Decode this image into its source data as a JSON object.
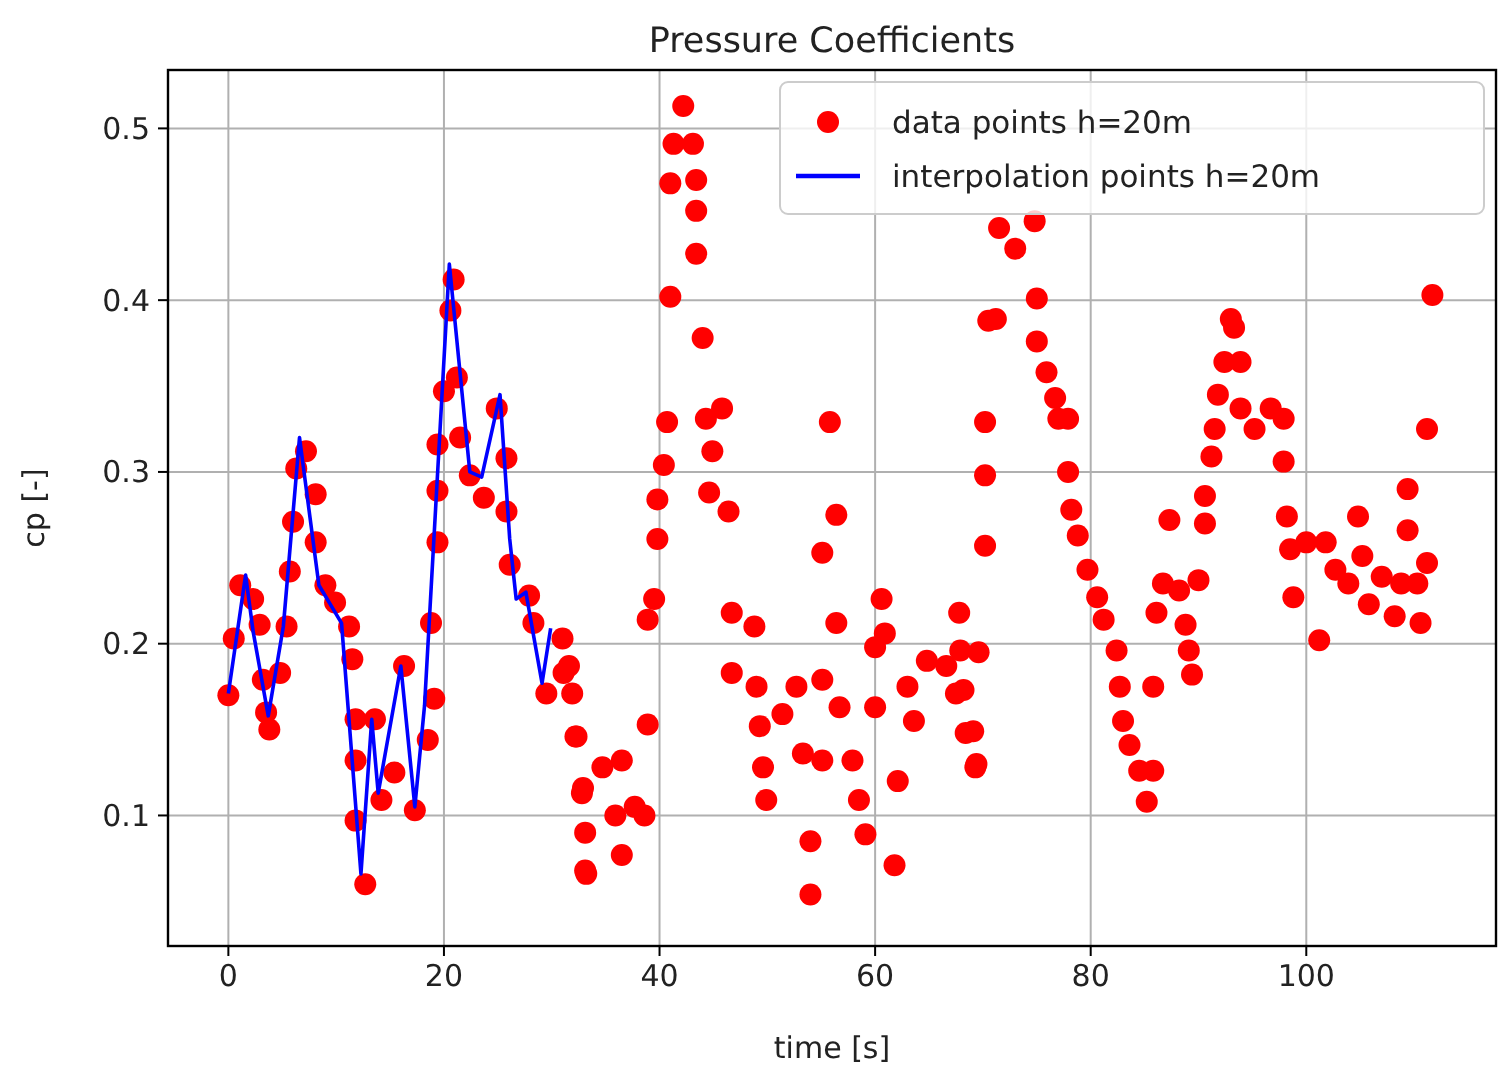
{
  "chart_data": {
    "type": "scatter",
    "title": "Pressure Coefficients",
    "xlabel": "time [s]",
    "ylabel": "cp [-]",
    "xlim": [
      -5.6,
      117.6
    ],
    "ylim": [
      0.024,
      0.534
    ],
    "xticks": [
      0,
      20,
      40,
      60,
      80,
      100
    ],
    "yticks": [
      0.1,
      0.2,
      0.3,
      0.4,
      0.5
    ],
    "grid": true,
    "legend": "top right",
    "series": [
      {
        "name": "data points h=20m",
        "color": "#ff0000",
        "marker": "circle",
        "x": [
          0,
          0.5,
          1.1,
          2.3,
          2.9,
          3.2,
          3.5,
          3.8,
          4.8,
          5.4,
          5.7,
          6.0,
          6.3,
          7.2,
          8.1,
          8.1,
          9.0,
          9.9,
          11.2,
          11.5,
          11.8,
          11.8,
          11.8,
          12.7,
          13.6,
          14.2,
          15.4,
          16.3,
          17.3,
          18.5,
          19.1,
          18.8,
          19.4,
          19.4,
          19.4,
          20.0,
          20.6,
          20.9,
          21.2,
          21.5,
          22.4,
          23.7,
          24.9,
          25.8,
          25.8,
          26.1,
          27.9,
          28.3,
          29.5,
          31.0,
          31.6,
          31.9,
          32.2,
          32.8,
          33.1,
          33.1,
          31.1,
          32.3,
          32.9,
          33.2,
          34.7,
          36.5,
          35.9,
          37.7,
          36.5,
          38.6,
          38.9,
          38.9,
          39.5,
          39.8,
          39.8,
          40.4,
          40.7,
          41.0,
          41.0,
          41.3,
          42.2,
          43.1,
          43.4,
          43.4,
          43.4,
          44.0,
          44.3,
          45.8,
          44.9,
          44.6,
          46.4,
          46.7,
          48.8,
          46.7,
          49.0,
          49.3,
          49.6,
          49.9,
          51.4,
          52.7,
          53.3,
          55.1,
          54.0,
          54.0,
          55.1,
          55.8,
          56.4,
          55.1,
          56.4,
          56.7,
          57.9,
          58.5,
          59.1,
          60.0,
          60.6,
          60.9,
          60.0,
          62.1,
          61.8,
          63.0,
          63.6,
          64.8,
          66.6,
          67.8,
          67.5,
          68.4,
          69.3,
          69.6,
          70.2,
          70.2,
          70.2,
          70.5,
          67.9,
          68.2,
          69.1,
          69.4,
          71.2,
          71.5,
          73.0,
          74.8,
          75.0,
          75.0,
          75.9,
          76.7,
          77.0,
          77.9,
          77.9,
          78.2,
          78.8,
          79.7,
          80.6,
          81.2,
          82.4,
          82.7,
          83.0,
          83.6,
          84.5,
          85.2,
          85.8,
          85.8,
          86.1,
          86.7,
          87.3,
          88.2,
          88.8,
          89.1,
          89.4,
          90.0,
          90.6,
          90.6,
          91.2,
          91.5,
          91.8,
          92.4,
          93.0,
          93.3,
          93.9,
          93.9,
          95.2,
          96.7,
          97.9,
          97.9,
          98.2,
          98.5,
          98.8,
          100.0,
          101.2,
          101.8,
          102.7,
          103.9,
          104.8,
          105.2,
          105.8,
          107.0,
          108.2,
          108.8,
          109.4,
          109.4,
          110.3,
          110.6,
          111.2,
          111.2,
          111.7
        ],
        "values": [
          0.17,
          0.203,
          0.234,
          0.226,
          0.211,
          0.179,
          0.16,
          0.15,
          0.183,
          0.21,
          0.242,
          0.271,
          0.302,
          0.312,
          0.287,
          0.259,
          0.234,
          0.224,
          0.21,
          0.191,
          0.156,
          0.132,
          0.097,
          0.06,
          0.156,
          0.109,
          0.125,
          0.187,
          0.103,
          0.144,
          0.168,
          0.212,
          0.259,
          0.289,
          0.316,
          0.347,
          0.394,
          0.412,
          0.355,
          0.32,
          0.298,
          0.285,
          0.337,
          0.308,
          0.277,
          0.246,
          0.228,
          0.212,
          0.171,
          0.203,
          0.187,
          0.171,
          0.146,
          0.113,
          0.09,
          0.068,
          0.183,
          0.146,
          0.116,
          0.066,
          0.128,
          0.132,
          0.1,
          0.105,
          0.077,
          0.1,
          0.153,
          0.214,
          0.226,
          0.261,
          0.284,
          0.304,
          0.329,
          0.402,
          0.468,
          0.491,
          0.513,
          0.491,
          0.47,
          0.452,
          0.427,
          0.378,
          0.331,
          0.337,
          0.312,
          0.288,
          0.277,
          0.218,
          0.21,
          0.183,
          0.175,
          0.152,
          0.128,
          0.109,
          0.159,
          0.175,
          0.136,
          0.132,
          0.085,
          0.054,
          0.179,
          0.329,
          0.275,
          0.253,
          0.212,
          0.163,
          0.132,
          0.109,
          0.089,
          0.163,
          0.226,
          0.206,
          0.198,
          0.12,
          0.071,
          0.175,
          0.155,
          0.19,
          0.187,
          0.218,
          0.171,
          0.148,
          0.128,
          0.195,
          0.257,
          0.298,
          0.329,
          0.388,
          0.196,
          0.173,
          0.149,
          0.13,
          0.389,
          0.442,
          0.43,
          0.446,
          0.401,
          0.376,
          0.358,
          0.343,
          0.331,
          0.331,
          0.3,
          0.278,
          0.263,
          0.243,
          0.227,
          0.214,
          0.196,
          0.175,
          0.155,
          0.141,
          0.126,
          0.108,
          0.126,
          0.175,
          0.218,
          0.235,
          0.272,
          0.231,
          0.211,
          0.196,
          0.182,
          0.237,
          0.27,
          0.286,
          0.309,
          0.325,
          0.345,
          0.364,
          0.389,
          0.384,
          0.364,
          0.337,
          0.325,
          0.337,
          0.331,
          0.306,
          0.274,
          0.255,
          0.227,
          0.259,
          0.202,
          0.259,
          0.243,
          0.235,
          0.274,
          0.251,
          0.223,
          0.239,
          0.216,
          0.235,
          0.266,
          0.29,
          0.235,
          0.212,
          0.247,
          0.325,
          0.403
        ]
      },
      {
        "type": "line",
        "name": "interpolation points h=20m",
        "color": "#0000ff",
        "marker": "none",
        "line_style": "solid",
        "x": [
          0,
          1.6,
          2.3,
          3.7,
          5.1,
          6.6,
          8.4,
          10.5,
          12.3,
          13.3,
          13.9,
          16.0,
          17.3,
          18.2,
          20.5,
          22.4,
          23.5,
          25.2,
          26.1,
          26.7,
          27.6,
          29.1,
          29.9
        ],
        "values": [
          0.171,
          0.24,
          0.207,
          0.158,
          0.21,
          0.32,
          0.234,
          0.212,
          0.066,
          0.156,
          0.113,
          0.187,
          0.105,
          0.164,
          0.421,
          0.3,
          0.297,
          0.345,
          0.261,
          0.226,
          0.23,
          0.177,
          0.209
        ]
      }
    ]
  }
}
